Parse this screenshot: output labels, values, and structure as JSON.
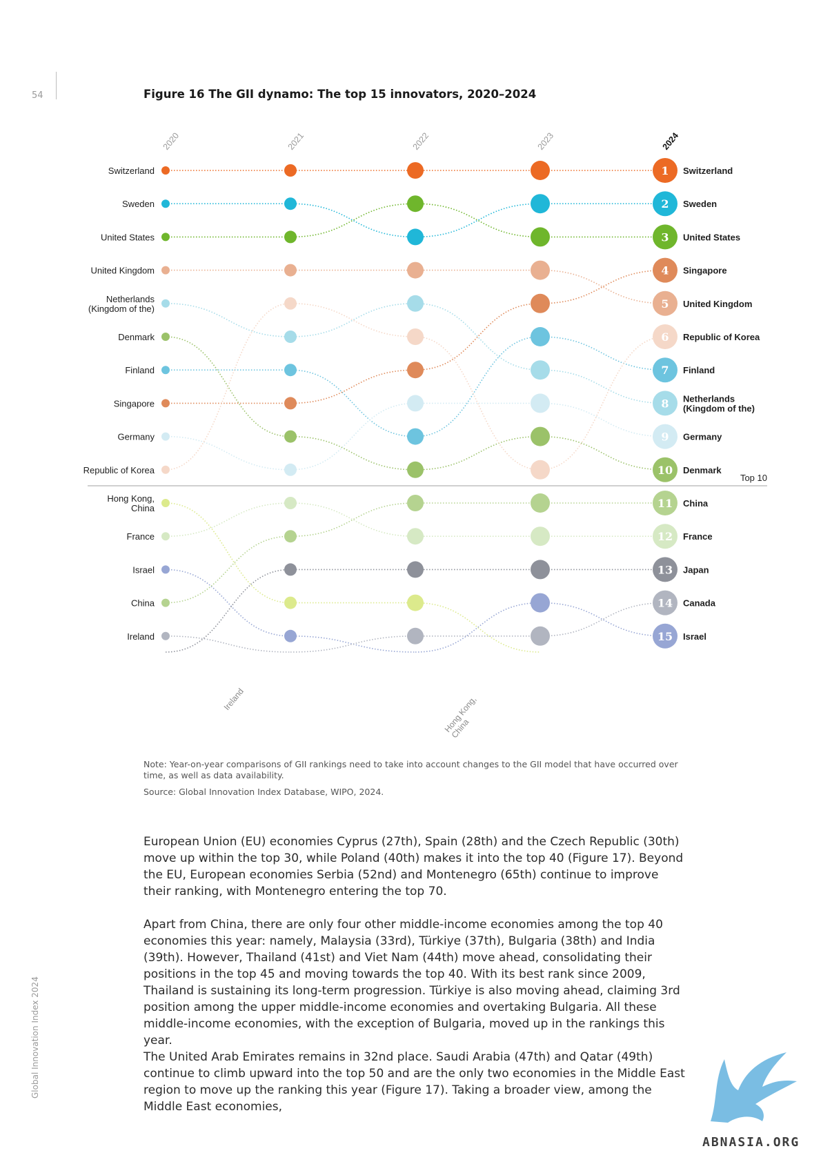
{
  "page": {
    "number": "54",
    "running_title": "Global Innovation Index 2024"
  },
  "figure": {
    "title": "Figure 16 The GII dynamo: The top 15 innovators, 2020–2024",
    "note": "Note: Year-on-year comparisons of GII rankings need to take into account changes to the GII model that have occurred over time, as well as data availability.",
    "source": "Source: Global Innovation Index Database, WIPO, 2024."
  },
  "chart_data": {
    "type": "bump",
    "years": [
      "2020",
      "2021",
      "2022",
      "2023",
      "2024"
    ],
    "left_labels": [
      [
        "Switzerland"
      ],
      [
        "Sweden"
      ],
      [
        "United States"
      ],
      [
        "United Kingdom"
      ],
      [
        "Netherlands",
        "(Kingdom of the)"
      ],
      [
        "Denmark"
      ],
      [
        "Finland"
      ],
      [
        "Singapore"
      ],
      [
        "Germany"
      ],
      [
        "Republic of Korea"
      ],
      [
        "Hong Kong,",
        "China"
      ],
      [
        "France"
      ],
      [
        "Israel"
      ],
      [
        "China"
      ],
      [
        "Ireland"
      ]
    ],
    "right_labels": [
      [
        "Switzerland"
      ],
      [
        "Sweden"
      ],
      [
        "United States"
      ],
      [
        "Singapore"
      ],
      [
        "United Kingdom"
      ],
      [
        "Republic of Korea"
      ],
      [
        "Finland"
      ],
      [
        "Netherlands",
        "(Kingdom of the)"
      ],
      [
        "Germany"
      ],
      [
        "Denmark"
      ],
      [
        "China"
      ],
      [
        "France"
      ],
      [
        "Japan"
      ],
      [
        "Canada"
      ],
      [
        "Israel"
      ]
    ],
    "top10_label": "Top 10",
    "dropout_labels": {
      "ireland": "Ireland",
      "hongkong": [
        "Hong Kong,",
        "China"
      ]
    },
    "series": [
      {
        "name": "Switzerland",
        "color": "#ec6a24",
        "ranks": [
          1,
          1,
          1,
          1,
          1
        ]
      },
      {
        "name": "Sweden",
        "color": "#20b7d8",
        "ranks": [
          2,
          2,
          3,
          2,
          2
        ]
      },
      {
        "name": "United States",
        "color": "#6fb62c",
        "ranks": [
          3,
          3,
          2,
          3,
          3
        ]
      },
      {
        "name": "United Kingdom",
        "color": "#e9b091",
        "ranks": [
          4,
          4,
          4,
          4,
          5
        ]
      },
      {
        "name": "Netherlands (Kingdom of the)",
        "color": "#a6dce9",
        "ranks": [
          5,
          6,
          5,
          7,
          8
        ]
      },
      {
        "name": "Denmark",
        "color": "#9bc269",
        "ranks": [
          6,
          9,
          10,
          9,
          10
        ]
      },
      {
        "name": "Finland",
        "color": "#6dc4df",
        "ranks": [
          7,
          7,
          9,
          6,
          7
        ]
      },
      {
        "name": "Singapore",
        "color": "#df8a5a",
        "ranks": [
          8,
          8,
          7,
          5,
          4
        ]
      },
      {
        "name": "Germany",
        "color": "#d3ebf3",
        "ranks": [
          9,
          10,
          8,
          8,
          9
        ]
      },
      {
        "name": "Republic of Korea",
        "color": "#f5d8c8",
        "ranks": [
          10,
          5,
          6,
          10,
          6
        ]
      },
      {
        "name": "Hong Kong, China",
        "color": "#dcea8c",
        "ranks": [
          11,
          14,
          14,
          null,
          null
        ]
      },
      {
        "name": "France",
        "color": "#d6e9c4",
        "ranks": [
          12,
          11,
          12,
          12,
          12
        ]
      },
      {
        "name": "Israel",
        "color": "#97a6d4",
        "ranks": [
          13,
          15,
          16,
          14,
          15
        ]
      },
      {
        "name": "China",
        "color": "#b5d390",
        "ranks": [
          14,
          12,
          11,
          11,
          11
        ]
      },
      {
        "name": "Ireland",
        "color": "#b1b5c0",
        "ranks": [
          15,
          16,
          16,
          16,
          16
        ]
      },
      {
        "name": "Japan",
        "color": "#8e919a",
        "ranks": [
          16,
          13,
          13,
          13,
          13
        ]
      },
      {
        "name": "Canada",
        "color": "#b1b5c0",
        "ranks": [
          16,
          16,
          15,
          15,
          14
        ]
      }
    ]
  },
  "body": {
    "p1": "European Union (EU) economies Cyprus (27th), Spain (28th) and the Czech Republic (30th) move up within the top 30, while Poland (40th) makes it into the top 40 (Figure 17). Beyond the EU, European economies Serbia (52nd) and Montenegro (65th) continue to improve their ranking, with Montenegro entering the top 70.",
    "p2": "Apart from China, there are only four other middle-income economies among the top 40 economies this year: namely, Malaysia (33rd), Türkiye (37th), Bulgaria (38th) and India (39th). However, Thailand (41st) and Viet Nam (44th) move ahead, consolidating their positions in the top 45 and moving towards the top 40. With its best rank since 2009, Thailand is sustaining its long-term progression. Türkiye is also moving ahead, claiming 3rd position among the upper middle-income economies and overtaking Bulgaria. All these middle-income economies, with the exception of Bulgaria, moved up in the rankings this year.",
    "p3": "The United Arab Emirates remains in 32nd place. Saudi Arabia (47th) and Qatar (49th) continue to climb upward into the top 50 and are the only two economies in the Middle East region to move up the ranking this year (Figure 17). Taking a broader view, among the Middle East economies,"
  },
  "watermark": {
    "text": "ABNASIA.ORG",
    "color": "#6cb6e0"
  }
}
